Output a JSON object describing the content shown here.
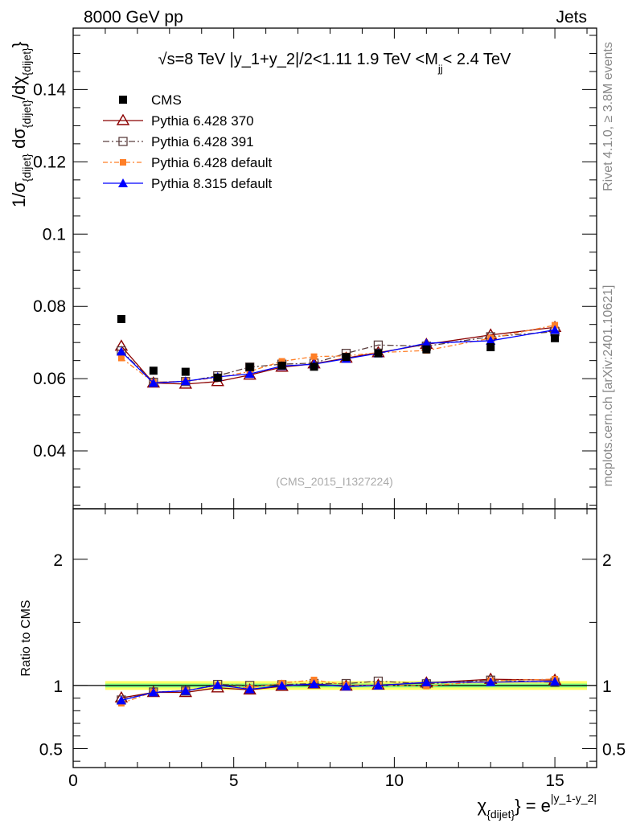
{
  "header": {
    "left_label": "8000 GeV pp",
    "right_label": "Jets"
  },
  "side_labels": {
    "rivet": "Rivet 4.1.0, ≥ 3.8M events",
    "mcplots": "mcplots.cern.ch [arXiv:2401.10621]"
  },
  "plot_title": {
    "sqrt": "√s",
    "main": "=8 TeV |y_1+y_2|/2<1.11 1.9 TeV <M",
    "sub": "jj",
    "tail": "< 2.4 TeV"
  },
  "watermark": "(CMS_2015_I1327224)",
  "axes": {
    "ylabel_main": {
      "p1": "1/σ",
      "s1": "{dijet}",
      "p2": " dσ",
      "s2": "{dijet}",
      "p3": "/dχ",
      "s3": "{dijet}",
      "p4": "}"
    },
    "ylabel_ratio": "Ratio to CMS",
    "xlabel": {
      "chi": "χ",
      "chi_sub": "{dijet}",
      "mid": "} = e",
      "sup": "|y_1-y_2|"
    }
  },
  "colors": {
    "cms": "#000000",
    "p6_370": "#8b0000",
    "p6_391": "#5c4040",
    "p6_default": "#ff7f27",
    "p8_default": "#0000ff",
    "band_inner": "#7fff7f",
    "band_outer": "#ffff66"
  },
  "chart_data": {
    "type": "line",
    "x": [
      1.5,
      2.5,
      3.5,
      4.5,
      5.5,
      6.5,
      7.5,
      8.5,
      9.5,
      11,
      13,
      15
    ],
    "xlim": [
      0,
      16.3
    ],
    "xticks": [
      "0",
      "5",
      "10",
      "15"
    ],
    "main": {
      "ylim": [
        0.024,
        0.157
      ],
      "yticks": [
        "0.04",
        "0.06",
        "0.08",
        "0.1",
        "0.12",
        "0.14"
      ]
    },
    "ratio": {
      "ylim": [
        0.35,
        2.4
      ],
      "yticks": [
        "0.5",
        "1",
        "2"
      ],
      "band_inner": [
        0.985,
        1.015
      ],
      "band_outer": [
        0.965,
        1.035
      ],
      "band_x": [
        1,
        16
      ]
    },
    "series": [
      {
        "name": "CMS",
        "key": "cms",
        "marker": "square",
        "values": [
          0.0765,
          0.0622,
          0.0619,
          0.0603,
          0.0632,
          0.0636,
          0.0633,
          0.066,
          0.067,
          0.0681,
          0.0687,
          0.0712
        ]
      },
      {
        "name": "Pythia 6.428 370",
        "key": "p6_370",
        "marker": "triangle-open",
        "dash": "",
        "values": [
          0.069,
          0.0588,
          0.0585,
          0.0592,
          0.061,
          0.0632,
          0.0641,
          0.0657,
          0.0672,
          0.0695,
          0.0721,
          0.0742
        ]
      },
      {
        "name": "Pythia 6.428 391",
        "key": "p6_391",
        "marker": "square-open",
        "dash": "8,3,2,3",
        "values": [
          0.0677,
          0.059,
          0.0592,
          0.0608,
          0.0632,
          0.064,
          0.0643,
          0.067,
          0.0693,
          0.069,
          0.0716,
          0.073
        ]
      },
      {
        "name": "Pythia 6.428 default",
        "key": "p6_default",
        "marker": "square-small",
        "dash": "6,3,2,3",
        "values": [
          0.0657,
          0.059,
          0.0593,
          0.0603,
          0.062,
          0.0648,
          0.0661,
          0.0663,
          0.0672,
          0.0678,
          0.0712,
          0.0748
        ]
      },
      {
        "name": "Pythia 8.315 default",
        "key": "p8_default",
        "marker": "triangle",
        "dash": "",
        "values": [
          0.0675,
          0.0588,
          0.0593,
          0.0605,
          0.0613,
          0.0635,
          0.064,
          0.0655,
          0.067,
          0.0698,
          0.0705,
          0.0735
        ]
      }
    ]
  }
}
